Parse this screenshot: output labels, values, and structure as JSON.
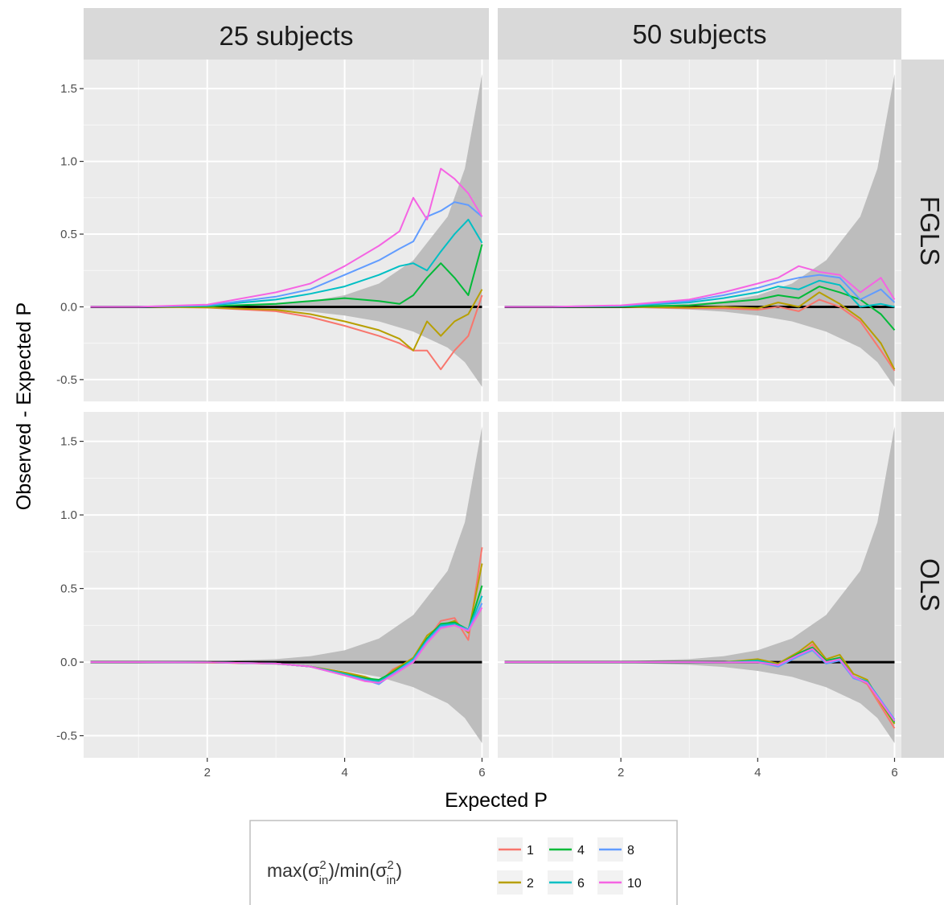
{
  "chart_data": {
    "type": "line",
    "facet_columns": [
      "25 subjects",
      "50 subjects"
    ],
    "facet_rows": [
      "FGLS",
      "OLS"
    ],
    "xlabel": "Expected P",
    "ylabel": "Observed - Expected P",
    "xlim": [
      0.2,
      6.1
    ],
    "ylim": [
      -0.65,
      1.7
    ],
    "x_ticks": [
      2,
      4,
      6
    ],
    "y_ticks": [
      -0.5,
      0.0,
      0.5,
      1.0,
      1.5
    ],
    "x_tick_labels": [
      "2",
      "4",
      "6"
    ],
    "y_tick_labels": [
      "-0.5",
      "0.0",
      "0.5",
      "1.0",
      "1.5"
    ],
    "grid": true,
    "reference_line": {
      "y": 0,
      "color": "#000000"
    },
    "confidence_band": {
      "color": "#bdbdbd",
      "x": [
        0.3,
        1.0,
        2.0,
        3.0,
        3.5,
        4.0,
        4.5,
        5.0,
        5.5,
        5.75,
        6.0
      ],
      "upper": [
        0.0,
        0.001,
        0.005,
        0.02,
        0.04,
        0.08,
        0.16,
        0.32,
        0.62,
        0.95,
        1.6
      ],
      "lower": [
        0.0,
        -0.001,
        -0.005,
        -0.018,
        -0.033,
        -0.06,
        -0.1,
        -0.17,
        -0.28,
        -0.38,
        -0.55
      ]
    },
    "legend": {
      "title": {
        "prefix": "max(σ",
        "sup1": "2",
        "sub1": "in",
        "middle": ")/min(σ",
        "sup2": "2",
        "sub2": "in",
        "suffix": ")"
      },
      "placement": "bottom",
      "entries": [
        {
          "label": "1",
          "color": "#F8766D"
        },
        {
          "label": "2",
          "color": "#B79F00"
        },
        {
          "label": "4",
          "color": "#00BA38"
        },
        {
          "label": "6",
          "color": "#00BFC4"
        },
        {
          "label": "8",
          "color": "#619CFF"
        },
        {
          "label": "10",
          "color": "#F564E3"
        }
      ]
    },
    "panels": [
      {
        "column": "25 subjects",
        "row": "FGLS",
        "series": [
          {
            "name": "1",
            "x": [
              0.3,
              1,
              2,
              3,
              3.5,
              4,
              4.5,
              4.8,
              5.0,
              5.2,
              5.4,
              5.6,
              5.8,
              6.0
            ],
            "y": [
              0,
              0,
              -0.005,
              -0.03,
              -0.07,
              -0.13,
              -0.2,
              -0.25,
              -0.3,
              -0.3,
              -0.43,
              -0.3,
              -0.2,
              0.08
            ]
          },
          {
            "name": "2",
            "x": [
              0.3,
              1,
              2,
              3,
              3.5,
              4,
              4.5,
              4.8,
              5.0,
              5.2,
              5.4,
              5.6,
              5.8,
              6.0
            ],
            "y": [
              0,
              0,
              -0.004,
              -0.02,
              -0.05,
              -0.1,
              -0.16,
              -0.22,
              -0.3,
              -0.1,
              -0.2,
              -0.1,
              -0.05,
              0.12
            ]
          },
          {
            "name": "4",
            "x": [
              0.3,
              1,
              2,
              3,
              3.5,
              4,
              4.5,
              4.8,
              5.0,
              5.2,
              5.4,
              5.6,
              5.8,
              6.0
            ],
            "y": [
              0,
              0,
              0.004,
              0.02,
              0.04,
              0.06,
              0.04,
              0.02,
              0.08,
              0.2,
              0.3,
              0.2,
              0.08,
              0.43
            ]
          },
          {
            "name": "6",
            "x": [
              0.3,
              1,
              2,
              3,
              3.5,
              4,
              4.5,
              4.8,
              5.0,
              5.2,
              5.4,
              5.6,
              5.8,
              6.0
            ],
            "y": [
              0,
              0,
              0.008,
              0.05,
              0.09,
              0.14,
              0.22,
              0.28,
              0.3,
              0.25,
              0.38,
              0.5,
              0.6,
              0.44
            ]
          },
          {
            "name": "8",
            "x": [
              0.3,
              1,
              2,
              3,
              3.5,
              4,
              4.5,
              4.8,
              5.0,
              5.2,
              5.4,
              5.6,
              5.8,
              6.0
            ],
            "y": [
              0,
              0,
              0.01,
              0.07,
              0.12,
              0.22,
              0.32,
              0.4,
              0.45,
              0.62,
              0.66,
              0.72,
              0.7,
              0.62
            ]
          },
          {
            "name": "10",
            "x": [
              0.3,
              1,
              2,
              3,
              3.5,
              4,
              4.5,
              4.8,
              5.0,
              5.2,
              5.4,
              5.6,
              5.8,
              6.0
            ],
            "y": [
              0,
              0,
              0.015,
              0.1,
              0.16,
              0.28,
              0.42,
              0.52,
              0.75,
              0.6,
              0.95,
              0.88,
              0.78,
              0.62
            ]
          }
        ]
      },
      {
        "column": "50 subjects",
        "row": "FGLS",
        "series": [
          {
            "name": "1",
            "x": [
              0.3,
              1,
              2,
              3,
              3.5,
              4,
              4.3,
              4.6,
              4.9,
              5.2,
              5.5,
              5.8,
              6.0
            ],
            "y": [
              0,
              0,
              0,
              -0.01,
              -0.01,
              -0.02,
              0.0,
              -0.03,
              0.05,
              0.0,
              -0.1,
              -0.3,
              -0.44
            ]
          },
          {
            "name": "2",
            "x": [
              0.3,
              1,
              2,
              3,
              3.5,
              4,
              4.3,
              4.6,
              4.9,
              5.2,
              5.5,
              5.8,
              6.0
            ],
            "y": [
              0,
              0,
              0,
              -0.005,
              0,
              -0.01,
              0.03,
              0.0,
              0.1,
              0.02,
              -0.08,
              -0.25,
              -0.43
            ]
          },
          {
            "name": "4",
            "x": [
              0.3,
              1,
              2,
              3,
              3.5,
              4,
              4.3,
              4.6,
              4.9,
              5.2,
              5.5,
              5.8,
              6.0
            ],
            "y": [
              0,
              0,
              0.002,
              0.01,
              0.03,
              0.05,
              0.08,
              0.06,
              0.14,
              0.1,
              0.05,
              -0.05,
              -0.16
            ]
          },
          {
            "name": "6",
            "x": [
              0.3,
              1,
              2,
              3,
              3.5,
              4,
              4.3,
              4.6,
              4.9,
              5.2,
              5.5,
              5.8,
              6.0
            ],
            "y": [
              0,
              0,
              0.005,
              0.03,
              0.06,
              0.1,
              0.14,
              0.12,
              0.18,
              0.15,
              0.0,
              0.02,
              0.0
            ]
          },
          {
            "name": "8",
            "x": [
              0.3,
              1,
              2,
              3,
              3.5,
              4,
              4.3,
              4.6,
              4.9,
              5.2,
              5.5,
              5.8,
              6.0
            ],
            "y": [
              0,
              0,
              0.008,
              0.04,
              0.08,
              0.13,
              0.17,
              0.2,
              0.22,
              0.2,
              0.05,
              0.12,
              0.03
            ]
          },
          {
            "name": "10",
            "x": [
              0.3,
              1,
              2,
              3,
              3.5,
              4,
              4.3,
              4.6,
              4.9,
              5.2,
              5.5,
              5.8,
              6.0
            ],
            "y": [
              0,
              0,
              0.01,
              0.05,
              0.1,
              0.16,
              0.2,
              0.28,
              0.24,
              0.22,
              0.1,
              0.2,
              0.05
            ]
          }
        ]
      },
      {
        "column": "25 subjects",
        "row": "OLS",
        "series": [
          {
            "name": "1",
            "x": [
              0.3,
              1,
              2,
              3,
              3.5,
              4,
              4.3,
              4.5,
              4.7,
              5.0,
              5.2,
              5.4,
              5.6,
              5.8,
              6.0
            ],
            "y": [
              0,
              0,
              -0.003,
              -0.01,
              -0.03,
              -0.07,
              -0.1,
              -0.14,
              -0.05,
              0.02,
              0.15,
              0.28,
              0.3,
              0.15,
              0.78
            ]
          },
          {
            "name": "2",
            "x": [
              0.3,
              1,
              2,
              3,
              3.5,
              4,
              4.3,
              4.5,
              4.7,
              5.0,
              5.2,
              5.4,
              5.6,
              5.8,
              6.0
            ],
            "y": [
              0,
              0,
              -0.003,
              -0.01,
              -0.03,
              -0.07,
              -0.1,
              -0.13,
              -0.06,
              0.03,
              0.18,
              0.25,
              0.28,
              0.2,
              0.67
            ]
          },
          {
            "name": "4",
            "x": [
              0.3,
              1,
              2,
              3,
              3.5,
              4,
              4.3,
              4.5,
              4.7,
              5.0,
              5.2,
              5.4,
              5.6,
              5.8,
              6.0
            ],
            "y": [
              0,
              0,
              -0.002,
              -0.01,
              -0.03,
              -0.08,
              -0.11,
              -0.12,
              -0.07,
              0.02,
              0.16,
              0.26,
              0.27,
              0.22,
              0.52
            ]
          },
          {
            "name": "6",
            "x": [
              0.3,
              1,
              2,
              3,
              3.5,
              4,
              4.3,
              4.5,
              4.7,
              5.0,
              5.2,
              5.4,
              5.6,
              5.8,
              6.0
            ],
            "y": [
              0,
              0,
              -0.002,
              -0.01,
              -0.03,
              -0.08,
              -0.12,
              -0.13,
              -0.08,
              0.02,
              0.15,
              0.25,
              0.26,
              0.22,
              0.45
            ]
          },
          {
            "name": "8",
            "x": [
              0.3,
              1,
              2,
              3,
              3.5,
              4,
              4.3,
              4.5,
              4.7,
              5.0,
              5.2,
              5.4,
              5.6,
              5.8,
              6.0
            ],
            "y": [
              0,
              0,
              -0.002,
              -0.01,
              -0.03,
              -0.09,
              -0.12,
              -0.15,
              -0.08,
              0.01,
              0.14,
              0.24,
              0.25,
              0.22,
              0.4
            ]
          },
          {
            "name": "10",
            "x": [
              0.3,
              1,
              2,
              3,
              3.5,
              4,
              4.3,
              4.5,
              4.7,
              5.0,
              5.2,
              5.4,
              5.6,
              5.8,
              6.0
            ],
            "y": [
              0,
              0,
              -0.002,
              -0.01,
              -0.03,
              -0.09,
              -0.13,
              -0.14,
              -0.09,
              0.0,
              0.13,
              0.23,
              0.25,
              0.21,
              0.37
            ]
          }
        ]
      },
      {
        "column": "50 subjects",
        "row": "OLS",
        "series": [
          {
            "name": "1",
            "x": [
              0.3,
              1,
              2,
              3,
              3.5,
              4,
              4.3,
              4.6,
              4.8,
              5.0,
              5.2,
              5.4,
              5.6,
              5.8,
              6.0
            ],
            "y": [
              0,
              0,
              0,
              0,
              -0.003,
              0.0,
              -0.03,
              0.05,
              0.12,
              0.0,
              0.03,
              -0.1,
              -0.15,
              -0.3,
              -0.45
            ]
          },
          {
            "name": "2",
            "x": [
              0.3,
              1,
              2,
              3,
              3.5,
              4,
              4.3,
              4.6,
              4.8,
              5.0,
              5.2,
              5.4,
              5.6,
              5.8,
              6.0
            ],
            "y": [
              0,
              0,
              0,
              0,
              0.0,
              0.02,
              -0.01,
              0.07,
              0.14,
              0.02,
              0.05,
              -0.08,
              -0.12,
              -0.28,
              -0.42
            ]
          },
          {
            "name": "4",
            "x": [
              0.3,
              1,
              2,
              3,
              3.5,
              4,
              4.3,
              4.6,
              4.8,
              5.0,
              5.2,
              5.4,
              5.6,
              5.8,
              6.0
            ],
            "y": [
              0,
              0,
              0,
              0,
              0.0,
              0.01,
              -0.02,
              0.06,
              0.1,
              0.01,
              0.03,
              -0.1,
              -0.14,
              -0.27,
              -0.41
            ]
          },
          {
            "name": "6",
            "x": [
              0.3,
              1,
              2,
              3,
              3.5,
              4,
              4.3,
              4.6,
              4.8,
              5.0,
              5.2,
              5.4,
              5.6,
              5.8,
              6.0
            ],
            "y": [
              0,
              0,
              0,
              0,
              -0.002,
              0.01,
              -0.02,
              0.05,
              0.09,
              0.0,
              0.02,
              -0.1,
              -0.13,
              -0.26,
              -0.4
            ]
          },
          {
            "name": "8",
            "x": [
              0.3,
              1,
              2,
              3,
              3.5,
              4,
              4.3,
              4.6,
              4.8,
              5.0,
              5.2,
              5.4,
              5.6,
              5.8,
              6.0
            ],
            "y": [
              0,
              0,
              0,
              0,
              -0.002,
              0.0,
              -0.03,
              0.04,
              0.08,
              -0.01,
              0.01,
              -0.11,
              -0.14,
              -0.26,
              -0.39
            ]
          },
          {
            "name": "10",
            "x": [
              0.3,
              1,
              2,
              3,
              3.5,
              4,
              4.3,
              4.6,
              4.8,
              5.0,
              5.2,
              5.4,
              5.6,
              5.8,
              6.0
            ],
            "y": [
              0,
              0,
              0,
              0,
              -0.002,
              0.0,
              -0.02,
              0.05,
              0.09,
              0.0,
              0.02,
              -0.1,
              -0.14,
              -0.27,
              -0.4
            ]
          }
        ]
      }
    ]
  }
}
